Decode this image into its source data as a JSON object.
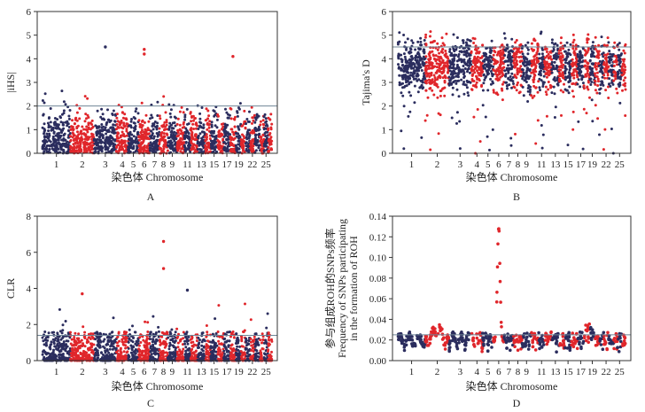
{
  "colors": {
    "navy": "#2b2d5e",
    "red": "#e0262b",
    "threshold_line": "#6f8596"
  },
  "chart_data": [
    {
      "type": "scatter",
      "panel": "A",
      "ylabel": "|iHS|",
      "xlabel": "染色体 Chromosome",
      "ylim": [
        0,
        6
      ],
      "yticks": [
        "0",
        "1",
        "2",
        "3",
        "4",
        "5",
        "6"
      ],
      "xtick_labels": [
        "1",
        "2",
        "3",
        "4",
        "5",
        "6",
        "7",
        "8",
        "9",
        "11",
        "13",
        "15",
        "17",
        "19",
        "22",
        "25"
      ],
      "threshold": 2,
      "chromosome_count": 26,
      "series": [
        {
          "values_note": "",
          "color": "alternating navy/red by chromosome"
        }
      ],
      "outliers": [
        {
          "chromosome": 3,
          "y": 4.5
        },
        {
          "chromosome": 6,
          "y": 4.4
        },
        {
          "chromosome": 18,
          "y": 4.1
        },
        {
          "chromosome": 6,
          "y": 4.2
        }
      ]
    },
    {
      "type": "scatter",
      "panel": "B",
      "ylabel": "Tajima's D",
      "xlabel": "染色体 Chromosome",
      "ylim": [
        0,
        6
      ],
      "yticks": [
        "0",
        "1",
        "2",
        "3",
        "4",
        "5",
        "6"
      ],
      "xtick_labels": [
        "1",
        "2",
        "3",
        "4",
        "5",
        "6",
        "7",
        "8",
        "9",
        "11",
        "13",
        "15",
        "17",
        "19",
        "22",
        "25"
      ],
      "threshold": 4.5,
      "chromosome_count": 26
    },
    {
      "type": "scatter",
      "panel": "C",
      "ylabel": "CLR",
      "xlabel": "染色体 Chromosome",
      "ylim": [
        0,
        8
      ],
      "yticks": [
        "0",
        "2",
        "4",
        "6",
        "8"
      ],
      "xtick_labels": [
        "1",
        "2",
        "3",
        "4",
        "5",
        "6",
        "7",
        "8",
        "9",
        "11",
        "13",
        "15",
        "17",
        "19",
        "22",
        "25"
      ],
      "threshold": 1.4,
      "chromosome_count": 26,
      "outliers": [
        {
          "chromosome": 8,
          "y": 6.6
        },
        {
          "chromosome": 8,
          "y": 5.1
        },
        {
          "chromosome": 11,
          "y": 3.9
        },
        {
          "chromosome": 2,
          "y": 3.7
        }
      ]
    },
    {
      "type": "scatter",
      "panel": "D",
      "ylabel_line1": "参与组成ROH的SNPs频率",
      "ylabel_line2": "Frequency of SNPs participating",
      "ylabel_line3": "in the formation of ROH",
      "xlabel": "染色体 Chromosome",
      "ylim": [
        0,
        0.14
      ],
      "yticks": [
        "0.00",
        "0.02",
        "0.04",
        "0.06",
        "0.08",
        "0.10",
        "0.12",
        "0.14"
      ],
      "xtick_labels": [
        "1",
        "2",
        "3",
        "4",
        "5",
        "6",
        "7",
        "8",
        "9",
        "11",
        "13",
        "15",
        "17",
        "19",
        "22",
        "25"
      ],
      "threshold": 0.025,
      "chromosome_count": 26,
      "peak": {
        "chromosome": 6,
        "y": 0.13
      }
    }
  ]
}
